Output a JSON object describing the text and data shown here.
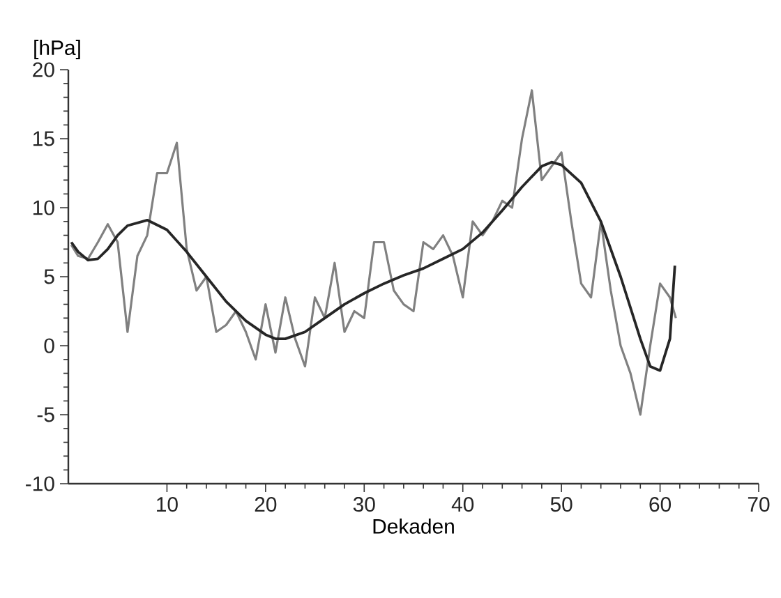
{
  "chart_data": {
    "type": "line",
    "ylabel": "[hPa]",
    "xlabel": "Dekaden",
    "xlim": [
      0,
      70
    ],
    "ylim": [
      -10,
      20
    ],
    "xticks": [
      10,
      20,
      30,
      40,
      50,
      60,
      70
    ],
    "yticks": [
      -10,
      -5,
      0,
      5,
      10,
      15,
      20
    ],
    "grid": false,
    "marker": "none",
    "line_style": "solid",
    "series": [
      {
        "color": "#808080",
        "x": [
          0.3,
          1,
          2,
          3,
          4,
          5,
          6,
          7,
          8,
          9,
          10,
          11,
          12,
          13,
          14,
          15,
          16,
          17,
          18,
          19,
          20,
          21,
          22,
          23,
          24,
          25,
          26,
          27,
          28,
          29,
          30,
          31,
          32,
          33,
          34,
          35,
          36,
          37,
          38,
          39,
          40,
          41,
          42,
          43,
          44,
          45,
          46,
          47,
          48,
          49,
          50,
          51,
          52,
          53,
          54,
          55,
          56,
          57,
          58,
          59,
          60,
          61,
          61.6
        ],
        "values": [
          7.3,
          6.5,
          6.3,
          7.5,
          8.8,
          7.5,
          1,
          6.5,
          8,
          12.5,
          12.5,
          14.7,
          7,
          4,
          5,
          1,
          1.5,
          2.5,
          1,
          -1,
          3,
          -0.5,
          3.5,
          0.5,
          -1.5,
          3.5,
          2,
          6,
          1,
          2.5,
          2,
          7.5,
          7.5,
          4,
          3,
          2.5,
          7.5,
          7,
          8,
          6.5,
          3.5,
          9,
          8,
          9,
          10.5,
          10,
          15,
          18.5,
          12,
          13,
          14,
          9,
          4.5,
          3.5,
          9,
          4,
          0,
          -2,
          -5,
          0,
          4.5,
          3.5,
          2
        ]
      },
      {
        "color": "#262626",
        "x": [
          0.3,
          1,
          2,
          3,
          4,
          5,
          6,
          8,
          10,
          12,
          14,
          16,
          18,
          20,
          21,
          22,
          24,
          26,
          28,
          30,
          32,
          34,
          36,
          38,
          40,
          42,
          44,
          46,
          48,
          49,
          50,
          52,
          54,
          56,
          58,
          59,
          60,
          61,
          61.5
        ],
        "values": [
          7.5,
          6.8,
          6.2,
          6.3,
          7,
          8,
          8.7,
          9.1,
          8.4,
          6.8,
          5,
          3.2,
          1.8,
          0.8,
          0.5,
          0.5,
          1,
          2,
          3,
          3.8,
          4.5,
          5.1,
          5.6,
          6.3,
          7,
          8.2,
          9.8,
          11.5,
          13,
          13.3,
          13.1,
          11.8,
          9,
          5,
          0.5,
          -1.5,
          -1.8,
          0.5,
          5.8
        ]
      }
    ]
  }
}
